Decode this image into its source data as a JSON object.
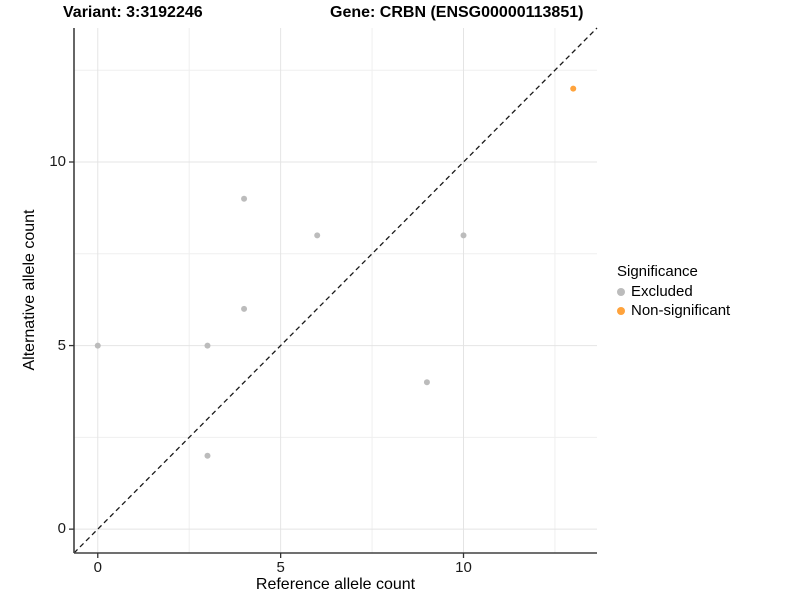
{
  "header": {
    "title_left": "Variant: 3:3192246",
    "title_right": "Gene: CRBN (ENSG00000113851)"
  },
  "chart_data": {
    "type": "scatter",
    "title_left": "Variant: 3:3192246",
    "title_right": "Gene: CRBN (ENSG00000113851)",
    "xlabel": "Reference allele count",
    "ylabel": "Alternative allele count",
    "xlim": [
      -0.65,
      13.65
    ],
    "ylim": [
      -0.65,
      13.65
    ],
    "x_ticks": [
      0,
      5,
      10
    ],
    "y_ticks": [
      0,
      5,
      10
    ],
    "x_minor_gridlines": [
      2.5,
      7.5,
      12.5
    ],
    "y_minor_gridlines": [
      2.5,
      7.5,
      12.5
    ],
    "grid": true,
    "identity_line": {
      "style": "dashed",
      "from": [
        -0.65,
        -0.65
      ],
      "to": [
        13.65,
        13.65
      ],
      "color": "#1a1a1a"
    },
    "series": [
      {
        "name": "Excluded",
        "color": "#BCBCBC",
        "points": [
          [
            0,
            5
          ],
          [
            3,
            2
          ],
          [
            3,
            5
          ],
          [
            4,
            6
          ],
          [
            4,
            9
          ],
          [
            6,
            8
          ],
          [
            9,
            4
          ],
          [
            10,
            8
          ]
        ]
      },
      {
        "name": "Non-significant",
        "color": "#FFA33C",
        "points": [
          [
            13,
            12
          ]
        ]
      }
    ],
    "legend": {
      "title": "Significance",
      "position": "right"
    }
  },
  "colors": {
    "background": "#ffffff",
    "major_gridline": "#E4E4E4",
    "minor_gridline": "#EFEFEF",
    "axis_line": "#404040",
    "tick_mark": "#333333",
    "text": "#000000"
  }
}
